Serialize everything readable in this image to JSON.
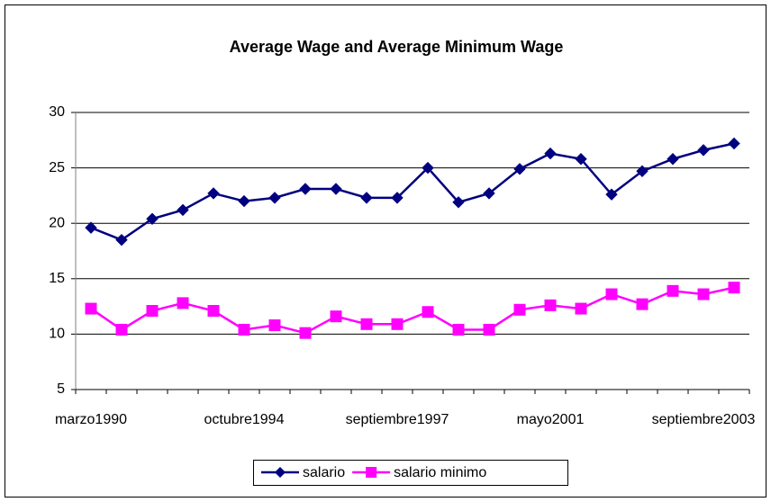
{
  "chart_data": {
    "type": "line",
    "title": "Average Wage and Average Minimum Wage",
    "categories": [
      "marzo1990",
      null,
      null,
      null,
      null,
      "octubre1994",
      null,
      null,
      null,
      null,
      "septiembre1997",
      null,
      null,
      null,
      null,
      "mayo2001",
      null,
      null,
      null,
      null,
      "septiembre2003",
      null
    ],
    "series": [
      {
        "name": "salario",
        "color": "#000080",
        "marker": "diamond",
        "values": [
          19.6,
          18.5,
          20.4,
          21.2,
          22.7,
          22.0,
          22.3,
          23.1,
          23.1,
          22.3,
          22.3,
          25.0,
          21.9,
          22.7,
          24.9,
          26.3,
          25.8,
          22.6,
          24.7,
          25.8,
          26.6,
          27.2
        ]
      },
      {
        "name": "salario minimo",
        "color": "#FF00FF",
        "marker": "square",
        "values": [
          12.3,
          10.4,
          12.1,
          12.8,
          12.1,
          10.4,
          10.8,
          10.1,
          11.6,
          10.9,
          10.9,
          12.0,
          10.4,
          10.4,
          12.2,
          12.6,
          12.3,
          13.6,
          12.7,
          13.9,
          13.6,
          14.2
        ]
      }
    ],
    "ylim": [
      5,
      30
    ],
    "yticks": [
      5,
      10,
      15,
      20,
      25,
      30
    ],
    "grid": true,
    "legend": "bottom"
  }
}
